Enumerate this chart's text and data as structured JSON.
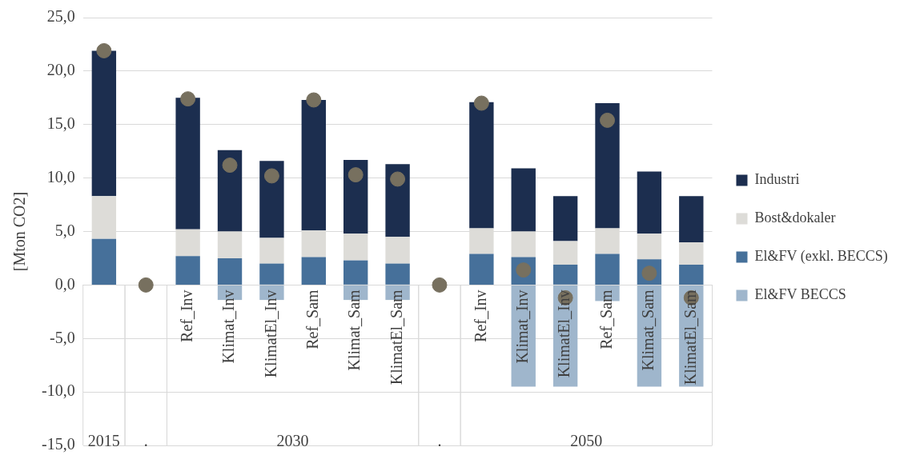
{
  "chart_data": {
    "type": "bar",
    "stacked": true,
    "ylabel": "[Mton CO2]",
    "categories": [
      null,
      null,
      "Ref_Inv",
      "Klimat_Inv",
      "KlimatEl_Inv",
      "Ref_Sam",
      "Klimat_Sam",
      "KlimatEl_Sam",
      null,
      "Ref_Inv",
      "Klimat_Inv",
      "KlimatEl_Inv",
      "Ref_Sam",
      "Klimat_Sam",
      "KlimatEl_Sam"
    ],
    "series": [
      {
        "name": "El&FV (exkl. BECCS)",
        "color": "#46709a",
        "values": [
          4.3,
          null,
          2.7,
          2.5,
          2.0,
          2.6,
          2.3,
          2.0,
          null,
          2.9,
          2.6,
          1.9,
          2.9,
          2.4,
          1.9
        ]
      },
      {
        "name": "Bost&dokaler",
        "color": "#dddcd8",
        "values": [
          4.0,
          null,
          2.5,
          2.5,
          2.4,
          2.5,
          2.5,
          2.5,
          null,
          2.4,
          2.4,
          2.2,
          2.4,
          2.4,
          2.1
        ]
      },
      {
        "name": "Industri",
        "color": "#1c2e4f",
        "values": [
          13.6,
          null,
          12.3,
          7.6,
          7.2,
          12.2,
          6.9,
          6.8,
          null,
          11.8,
          5.9,
          4.2,
          11.7,
          5.8,
          4.3
        ]
      },
      {
        "name": "El&FV BECCS",
        "color": "#9fb6cc",
        "values": [
          0,
          null,
          0,
          -1.4,
          -1.4,
          0,
          -1.4,
          -1.4,
          null,
          0,
          -9.5,
          -9.5,
          -1.5,
          -9.5,
          -9.5
        ]
      },
      {
        "type": "scatter",
        "color": "#77705f",
        "values": [
          21.9,
          0,
          17.4,
          11.2,
          10.2,
          17.3,
          10.3,
          9.9,
          0,
          17.0,
          1.4,
          -1.2,
          15.4,
          1.1,
          -1.2
        ]
      }
    ],
    "ylim": [
      -15,
      25
    ],
    "yticks": [
      {
        "value": -15,
        "label": "-15,0"
      },
      {
        "value": -10,
        "label": "-10,0"
      },
      {
        "value": -5,
        "label": "-5,0"
      },
      {
        "value": 0,
        "label": "0,0"
      },
      {
        "value": 5,
        "label": "5,0"
      },
      {
        "value": 10,
        "label": "10,0"
      },
      {
        "value": 15,
        "label": "15,0"
      },
      {
        "value": 20,
        "label": "20,0"
      },
      {
        "value": 25,
        "label": "25,0"
      }
    ],
    "grid": "y",
    "legend": "right",
    "marker": "circle",
    "annotations": [
      "2015",
      ".",
      "2030",
      ".",
      "2050"
    ]
  }
}
